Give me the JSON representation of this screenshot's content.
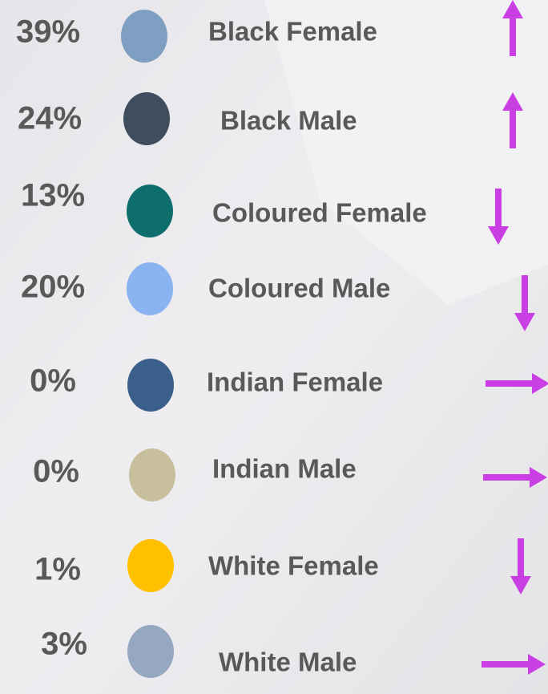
{
  "items": [
    {
      "percent": "39%",
      "label": "Black Female",
      "color": "#7f9fc2",
      "arrow": "up"
    },
    {
      "percent": "24%",
      "label": "Black Male",
      "color": "#3e4e5f",
      "arrow": "up"
    },
    {
      "percent": "13%",
      "label": "Coloured Female",
      "color": "#0e6e6b",
      "arrow": "down"
    },
    {
      "percent": "20%",
      "label": "Coloured Male",
      "color": "#8ab4f0",
      "arrow": "down"
    },
    {
      "percent": "0%",
      "label": "Indian Female",
      "color": "#3a5f8a",
      "arrow": "right"
    },
    {
      "percent": "0%",
      "label": "Indian Male",
      "color": "#c8c09c",
      "arrow": "right"
    },
    {
      "percent": "1%",
      "label": "White Female",
      "color": "#ffc000",
      "arrow": "down"
    },
    {
      "percent": "3%",
      "label": "White Male",
      "color": "#96a8bf",
      "arrow": "right"
    }
  ],
  "arrow_color": "#c93fe3"
}
